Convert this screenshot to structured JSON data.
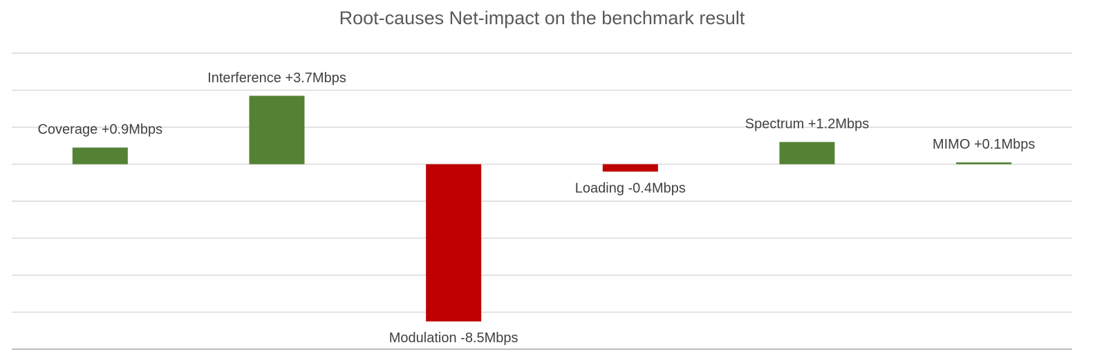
{
  "chart_data": {
    "type": "bar",
    "title": "Root-causes Net-impact on the benchmark result",
    "values": [
      0.9,
      3.7,
      -8.5,
      -0.4,
      1.2,
      0.1
    ],
    "value_labels": [
      "Coverage +0.9Mbps",
      "Interference +3.7Mbps",
      "Modulation -8.5Mbps",
      "Loading -0.4Mbps",
      "Spectrum +1.2Mbps",
      "MIMO +0.1Mbps"
    ],
    "colors": [
      "#548235",
      "#548235",
      "#c00000",
      "#c00000",
      "#548235",
      "#548235"
    ],
    "ylim": [
      -10,
      6
    ],
    "yticks": [
      -10,
      -8,
      -6,
      -4,
      -2,
      0,
      2,
      4,
      6
    ],
    "grid": true
  }
}
